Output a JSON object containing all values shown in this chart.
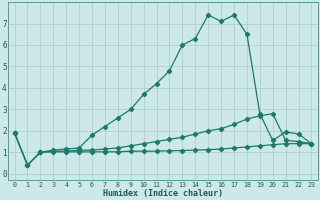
{
  "xlabel": "Humidex (Indice chaleur)",
  "bg_color": "#cde8e8",
  "grid_color": "#b0d0d0",
  "line_color": "#1a7a6e",
  "xlim": [
    -0.5,
    23.5
  ],
  "ylim": [
    -0.3,
    8.0
  ],
  "xticks": [
    0,
    1,
    2,
    3,
    4,
    5,
    6,
    7,
    8,
    9,
    10,
    11,
    12,
    13,
    14,
    15,
    16,
    17,
    18,
    19,
    20,
    21,
    22,
    23
  ],
  "yticks": [
    0,
    1,
    2,
    3,
    4,
    5,
    6,
    7
  ],
  "series1_x": [
    0,
    1,
    2,
    3,
    4,
    5,
    6,
    7,
    8,
    9,
    10,
    11,
    12,
    13,
    14,
    15,
    16,
    17,
    18,
    19,
    20,
    21,
    22,
    23
  ],
  "series1_y": [
    1.9,
    0.4,
    1.0,
    1.1,
    1.15,
    1.2,
    1.8,
    2.2,
    2.6,
    3.0,
    3.7,
    4.2,
    4.8,
    6.0,
    6.3,
    7.4,
    7.1,
    7.4,
    6.5,
    2.8,
    1.55,
    1.95,
    1.85,
    1.4
  ],
  "series2_x": [
    0,
    1,
    2,
    3,
    4,
    5,
    6,
    7,
    8,
    9,
    10,
    11,
    12,
    13,
    14,
    15,
    16,
    17,
    18,
    19,
    20,
    21,
    22,
    23
  ],
  "series2_y": [
    1.9,
    0.4,
    1.0,
    1.05,
    1.05,
    1.1,
    1.1,
    1.15,
    1.2,
    1.3,
    1.4,
    1.5,
    1.6,
    1.7,
    1.85,
    2.0,
    2.1,
    2.3,
    2.55,
    2.7,
    2.8,
    1.55,
    1.5,
    1.4
  ],
  "series3_x": [
    0,
    1,
    2,
    3,
    4,
    5,
    6,
    7,
    8,
    9,
    10,
    11,
    12,
    13,
    14,
    15,
    16,
    17,
    18,
    19,
    20,
    21,
    22,
    23
  ],
  "series3_y": [
    1.9,
    0.4,
    1.0,
    1.02,
    1.02,
    1.02,
    1.02,
    1.02,
    1.02,
    1.05,
    1.05,
    1.05,
    1.07,
    1.08,
    1.1,
    1.12,
    1.15,
    1.2,
    1.25,
    1.3,
    1.35,
    1.4,
    1.4,
    1.4
  ]
}
